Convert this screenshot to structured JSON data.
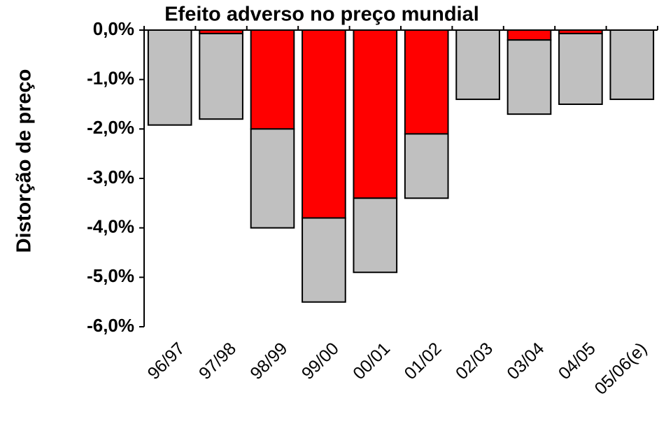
{
  "chart_data": {
    "type": "bar",
    "stacked": true,
    "title": "Efeito adverso no preço mundial",
    "y_label": "Distorção de preço",
    "categories": [
      "96/97",
      "97/98",
      "98/99",
      "99/00",
      "00/01",
      "01/02",
      "02/03",
      "03/04",
      "04/05",
      "05/06(e)"
    ],
    "series": [
      {
        "color": "#ff0000",
        "values": [
          0,
          -0.07,
          -2.0,
          -3.8,
          -3.4,
          -2.1,
          0,
          -0.2,
          -0.07,
          0
        ]
      },
      {
        "color": "#c0c0c0",
        "values": [
          -1.92,
          -1.73,
          -2.0,
          -1.7,
          -1.5,
          -1.3,
          -1.4,
          -1.5,
          -1.43,
          -1.4
        ]
      }
    ],
    "ylim": [
      -6,
      0
    ],
    "yticks": [
      {
        "value": 0,
        "label": "0,0%"
      },
      {
        "value": -1,
        "label": "-1,0%"
      },
      {
        "value": -2,
        "label": "-2,0%"
      },
      {
        "value": -3,
        "label": "-3,0%"
      },
      {
        "value": -4,
        "label": "-4,0%"
      },
      {
        "value": -5,
        "label": "-5,0%"
      },
      {
        "value": -6,
        "label": "-6,0%"
      }
    ],
    "grid": false
  }
}
